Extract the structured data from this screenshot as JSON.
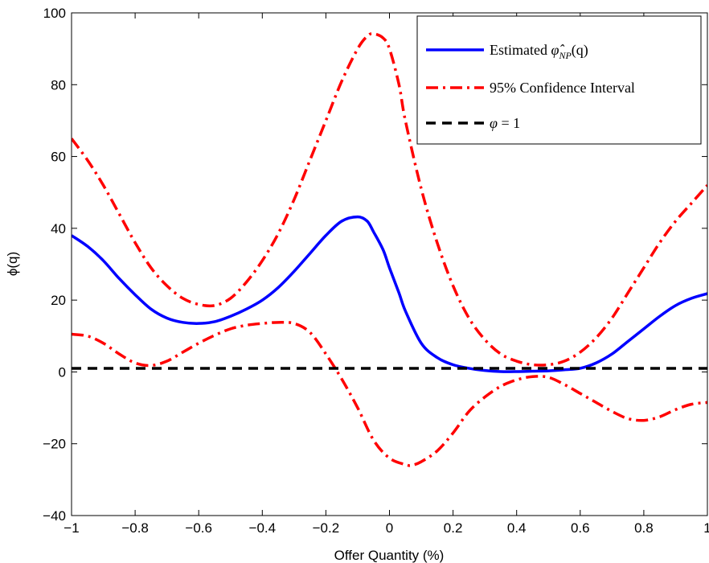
{
  "chart_data": {
    "type": "line",
    "xlabel": "Offer Quantity (%)",
    "ylabel": "ϕ(q)",
    "xlim": [
      -1,
      1
    ],
    "ylim": [
      -40,
      100
    ],
    "xticks": [
      -1,
      -0.8,
      -0.6,
      -0.4,
      -0.2,
      0,
      0.2,
      0.4,
      0.6,
      0.8,
      1
    ],
    "xtick_labels": [
      "−1",
      "−0.8",
      "−0.6",
      "−0.4",
      "−0.2",
      "0",
      "0.2",
      "0.4",
      "0.6",
      "0.8",
      "1"
    ],
    "yticks": [
      -40,
      -20,
      0,
      20,
      40,
      60,
      80,
      100
    ],
    "ytick_labels": [
      "−40",
      "−20",
      "0",
      "20",
      "40",
      "60",
      "80",
      "100"
    ],
    "grid": false,
    "legend_position": "top-right",
    "legend": [
      {
        "text": "Estimated ",
        "math": "φ̂",
        "sub": "NP",
        "suffix": "(q)"
      },
      {
        "text": "95% Confidence Interval"
      },
      {
        "math": "φ",
        "text": " = 1"
      }
    ],
    "series": [
      {
        "color": "#0000ff",
        "style": "solid",
        "x": [
          -1,
          -0.95,
          -0.9,
          -0.85,
          -0.8,
          -0.75,
          -0.7,
          -0.65,
          -0.6,
          -0.55,
          -0.5,
          -0.45,
          -0.4,
          -0.35,
          -0.3,
          -0.25,
          -0.2,
          -0.15,
          -0.1,
          -0.07,
          -0.05,
          -0.02,
          0,
          0.03,
          0.05,
          0.1,
          0.15,
          0.2,
          0.25,
          0.3,
          0.35,
          0.4,
          0.45,
          0.5,
          0.55,
          0.6,
          0.65,
          0.7,
          0.75,
          0.8,
          0.85,
          0.9,
          0.95,
          1
        ],
        "y": [
          38,
          35,
          31,
          26,
          21.5,
          17.5,
          15,
          13.8,
          13.5,
          14,
          15.5,
          17.5,
          20,
          23.5,
          28,
          33,
          38,
          42,
          43.2,
          42,
          39,
          34,
          29,
          22,
          17,
          8,
          4,
          2,
          1,
          0.4,
          0.1,
          0.1,
          0.2,
          0.3,
          0.6,
          1,
          2.5,
          5,
          8.5,
          12,
          15.5,
          18.5,
          20.5,
          21.8
        ]
      },
      {
        "color": "#ff0000",
        "style": "dashdot",
        "x": [
          -1,
          -0.95,
          -0.9,
          -0.85,
          -0.8,
          -0.75,
          -0.7,
          -0.65,
          -0.6,
          -0.55,
          -0.5,
          -0.45,
          -0.4,
          -0.35,
          -0.3,
          -0.25,
          -0.2,
          -0.15,
          -0.1,
          -0.07,
          -0.05,
          -0.02,
          0,
          0.03,
          0.05,
          0.1,
          0.15,
          0.2,
          0.25,
          0.3,
          0.35,
          0.4,
          0.45,
          0.5,
          0.55,
          0.6,
          0.65,
          0.7,
          0.75,
          0.8,
          0.85,
          0.9,
          0.95,
          1
        ],
        "y": [
          65,
          59,
          52,
          44,
          36,
          29,
          24,
          20.5,
          18.8,
          18.5,
          20.5,
          25,
          31,
          38.5,
          48,
          59,
          70,
          81,
          90,
          93.5,
          94.2,
          93,
          90,
          80,
          70,
          51,
          36,
          24,
          15,
          9,
          5,
          3,
          2,
          2,
          3,
          5.5,
          9.5,
          15,
          22,
          29,
          36,
          42,
          47,
          52
        ]
      },
      {
        "color": "#ff0000",
        "style": "dashdot",
        "x": [
          -1,
          -0.95,
          -0.9,
          -0.85,
          -0.8,
          -0.75,
          -0.7,
          -0.65,
          -0.6,
          -0.55,
          -0.5,
          -0.45,
          -0.4,
          -0.35,
          -0.3,
          -0.25,
          -0.2,
          -0.15,
          -0.1,
          -0.05,
          0,
          0.05,
          0.07,
          0.1,
          0.15,
          0.2,
          0.25,
          0.3,
          0.35,
          0.4,
          0.45,
          0.5,
          0.55,
          0.6,
          0.65,
          0.7,
          0.75,
          0.8,
          0.85,
          0.9,
          0.95,
          1
        ],
        "y": [
          10.5,
          10,
          8,
          5,
          2.5,
          1.8,
          3,
          5.5,
          8,
          10.2,
          12,
          13,
          13.5,
          13.8,
          13.5,
          11,
          5,
          -2,
          -10,
          -19,
          -24,
          -25.8,
          -26,
          -25,
          -22,
          -17,
          -11,
          -7,
          -4,
          -2.2,
          -1.3,
          -1.5,
          -3.5,
          -6,
          -8.5,
          -11,
          -13,
          -13.5,
          -12.5,
          -10.5,
          -9,
          -8.5
        ]
      },
      {
        "color": "#000000",
        "style": "dashed",
        "x": [
          -1,
          1
        ],
        "y": [
          1,
          1
        ]
      }
    ]
  }
}
